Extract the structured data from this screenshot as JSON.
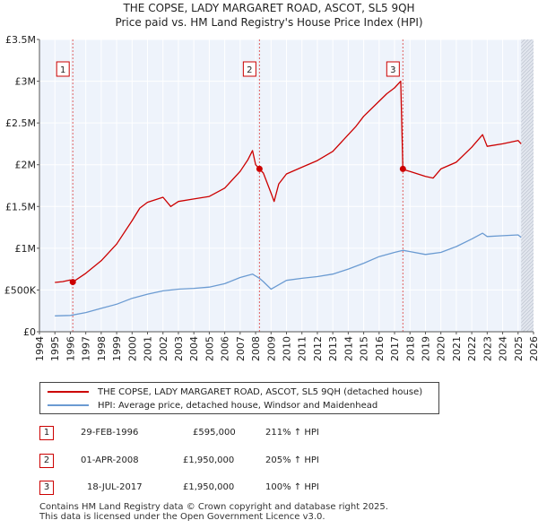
{
  "title_line1": "THE COPSE, LADY MARGARET ROAD, ASCOT, SL5 9QH",
  "title_line2": "Price paid vs. HM Land Registry's House Price Index (HPI)",
  "chart_data": {
    "type": "line",
    "title": "THE COPSE, LADY MARGARET ROAD, ASCOT, SL5 9QH",
    "subtitle": "Price paid vs. HM Land Registry's House Price Index (HPI)",
    "xlabel": "",
    "ylabel": "",
    "xlim": [
      1994,
      2026
    ],
    "ylim": [
      0,
      3500000
    ],
    "x_ticks": [
      1994,
      1995,
      1996,
      1997,
      1998,
      1999,
      2000,
      2001,
      2002,
      2003,
      2004,
      2005,
      2006,
      2007,
      2008,
      2009,
      2010,
      2011,
      2012,
      2013,
      2014,
      2015,
      2016,
      2017,
      2018,
      2019,
      2020,
      2021,
      2022,
      2023,
      2024,
      2025,
      2026
    ],
    "y_ticks": [
      {
        "value": 0,
        "label": "£0"
      },
      {
        "value": 500000,
        "label": "£500K"
      },
      {
        "value": 1000000,
        "label": "£1M"
      },
      {
        "value": 1500000,
        "label": "£1.5M"
      },
      {
        "value": 2000000,
        "label": "£2M"
      },
      {
        "value": 2500000,
        "label": "£2.5M"
      },
      {
        "value": 3000000,
        "label": "£3M"
      },
      {
        "value": 3500000,
        "label": "£3.5M"
      }
    ],
    "grid": true,
    "series": [
      {
        "name": "THE COPSE, LADY MARGARET ROAD, ASCOT, SL5 9QH (detached house)",
        "color": "#cc0000",
        "x": [
          1995.0,
          1995.5,
          1996.0,
          1996.16,
          1997.0,
          1998.0,
          1999.0,
          2000.0,
          2000.5,
          2001.0,
          2002.0,
          2002.5,
          2003.0,
          2004.0,
          2005.0,
          2006.0,
          2007.0,
          2007.5,
          2007.8,
          2008.0,
          2008.25,
          2008.5,
          2009.0,
          2009.2,
          2009.5,
          2010.0,
          2011.0,
          2012.0,
          2013.0,
          2014.0,
          2014.5,
          2015.0,
          2016.0,
          2016.5,
          2017.0,
          2017.4,
          2017.54,
          2017.6,
          2018.0,
          2019.0,
          2019.5,
          2020.0,
          2021.0,
          2022.0,
          2022.7,
          2023.0,
          2024.0,
          2025.0,
          2025.2
        ],
        "values": [
          590000,
          600000,
          620000,
          595000,
          700000,
          850000,
          1050000,
          1330000,
          1480000,
          1550000,
          1610000,
          1500000,
          1560000,
          1590000,
          1620000,
          1720000,
          1920000,
          2060000,
          2170000,
          2000000,
          1950000,
          1900000,
          1660000,
          1560000,
          1770000,
          1890000,
          1970000,
          2050000,
          2160000,
          2360000,
          2460000,
          2580000,
          2760000,
          2850000,
          2920000,
          3000000,
          1950000,
          1940000,
          1920000,
          1860000,
          1840000,
          1950000,
          2030000,
          2210000,
          2360000,
          2220000,
          2250000,
          2290000,
          2250000
        ]
      },
      {
        "name": "HPI: Average price, detached house, Windsor and Maidenhead",
        "color": "#6b9bd2",
        "x": [
          1995.0,
          1996.0,
          1997.0,
          1998.0,
          1999.0,
          2000.0,
          2001.0,
          2002.0,
          2003.0,
          2004.0,
          2005.0,
          2006.0,
          2007.0,
          2007.8,
          2008.25,
          2008.5,
          2009.0,
          2009.2,
          2010.0,
          2011.0,
          2012.0,
          2013.0,
          2014.0,
          2015.0,
          2016.0,
          2017.0,
          2017.54,
          2018.0,
          2019.0,
          2020.0,
          2021.0,
          2022.0,
          2022.7,
          2023.0,
          2024.0,
          2025.0,
          2025.2
        ],
        "values": [
          190000,
          195000,
          230000,
          280000,
          330000,
          400000,
          450000,
          490000,
          510000,
          520000,
          535000,
          575000,
          650000,
          690000,
          640000,
          600000,
          510000,
          530000,
          615000,
          640000,
          660000,
          690000,
          750000,
          820000,
          900000,
          950000,
          975000,
          960000,
          925000,
          950000,
          1020000,
          1110000,
          1180000,
          1140000,
          1150000,
          1160000,
          1130000
        ]
      }
    ],
    "transactions": [
      {
        "label": "1",
        "x": 1996.16,
        "value": 595000
      },
      {
        "label": "2",
        "x": 2008.25,
        "value": 1950000
      },
      {
        "label": "3",
        "x": 2017.54,
        "value": 1950000
      }
    ]
  },
  "legend": {
    "property_label": "THE COPSE, LADY MARGARET ROAD, ASCOT, SL5 9QH (detached house)",
    "hpi_label": "HPI: Average price, detached house, Windsor and Maidenhead"
  },
  "sales": [
    {
      "num": "1",
      "date": "29-FEB-1996",
      "price": "£595,000",
      "hpi": "211% ↑ HPI"
    },
    {
      "num": "2",
      "date": "01-APR-2008",
      "price": "£1,950,000",
      "hpi": "205% ↑ HPI"
    },
    {
      "num": "3",
      "date": "18-JUL-2017",
      "price": "£1,950,000",
      "hpi": "100% ↑ HPI"
    }
  ],
  "footer": {
    "line1": "Contains HM Land Registry data © Crown copyright and database right 2025.",
    "line2": "This data is licensed under the Open Government Licence v3.0."
  },
  "colors": {
    "property": "#cc0000",
    "hpi": "#6b9bd2",
    "plot_bg": "#eef3fb",
    "grid": "#ffffff"
  }
}
